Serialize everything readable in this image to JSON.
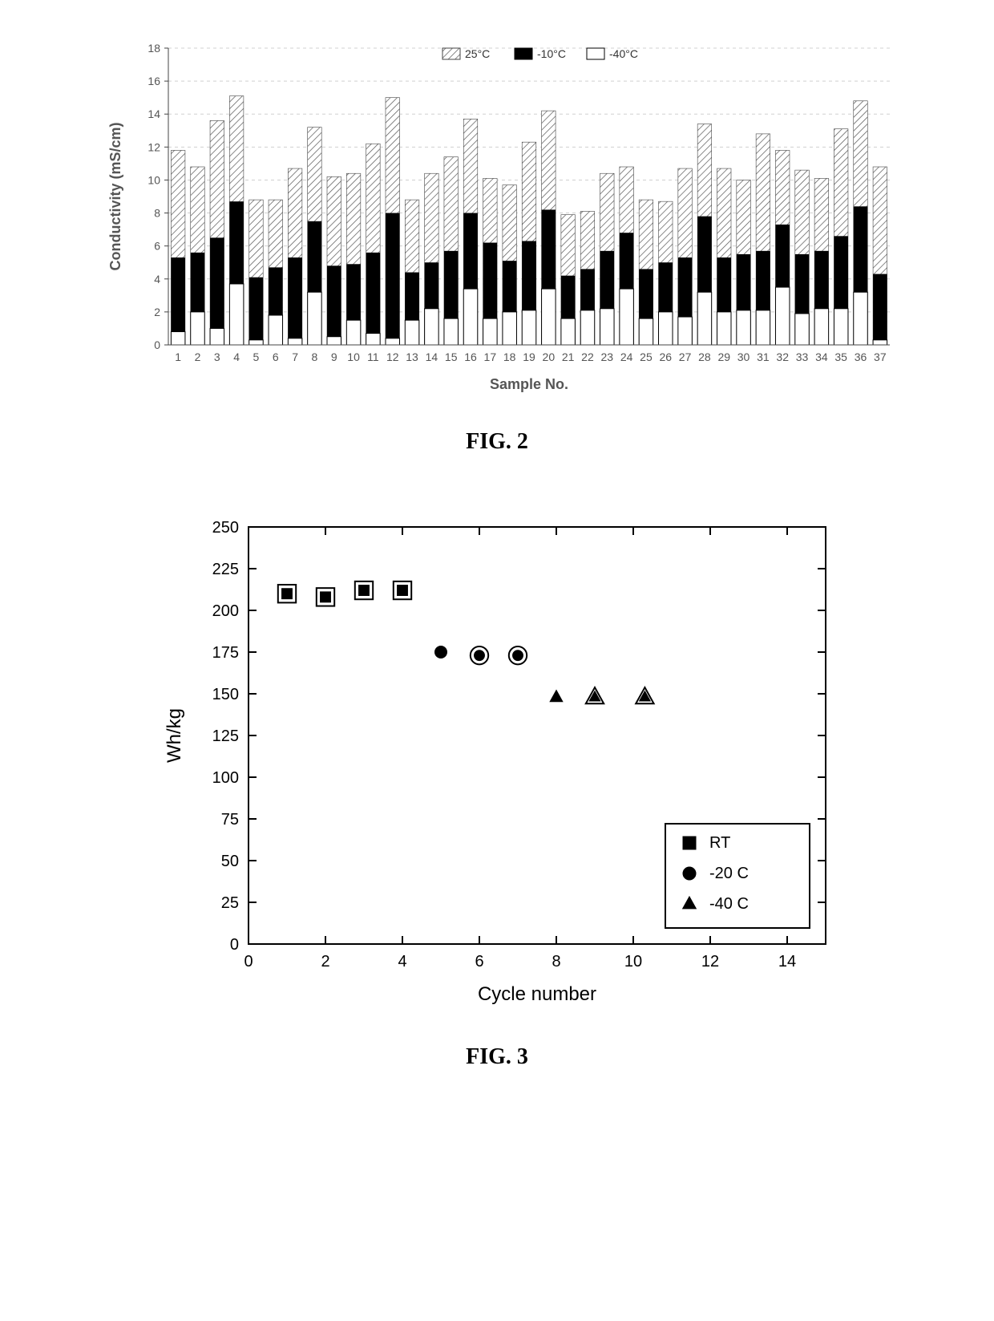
{
  "fig2": {
    "caption": "FIG. 2",
    "type": "bar",
    "xlabel": "Sample No.",
    "ylabel": "Conductivity (mS/cm)",
    "label_fontsize": 18,
    "tick_fontsize": 14,
    "categories": [
      "1",
      "2",
      "3",
      "4",
      "5",
      "6",
      "7",
      "8",
      "9",
      "10",
      "11",
      "12",
      "13",
      "14",
      "15",
      "16",
      "17",
      "18",
      "19",
      "20",
      "21",
      "22",
      "23",
      "24",
      "25",
      "26",
      "27",
      "28",
      "29",
      "30",
      "31",
      "32",
      "33",
      "34",
      "35",
      "36",
      "37"
    ],
    "ylim": [
      0,
      18
    ],
    "ytick_step": 2,
    "grid_color": "#d0d0d0",
    "grid_dash": "4,4",
    "background_color": "#ffffff",
    "bar_width": 0.72,
    "legend": {
      "items": [
        {
          "label": "25°C",
          "pattern": "hatch"
        },
        {
          "label": "-10°C",
          "pattern": "solid"
        },
        {
          "label": "-40°C",
          "pattern": "open"
        }
      ],
      "fontsize": 14
    },
    "series": {
      "25C": {
        "values": [
          11.8,
          10.8,
          13.6,
          15.1,
          8.8,
          8.8,
          10.7,
          13.2,
          10.2,
          10.4,
          12.2,
          15.0,
          8.8,
          10.4,
          11.4,
          13.7,
          10.1,
          9.7,
          12.3,
          14.2,
          7.9,
          8.1,
          10.4,
          10.8,
          8.8,
          8.7,
          10.7,
          13.4,
          10.7,
          10.0,
          12.8,
          11.8,
          10.6,
          10.1,
          13.1,
          14.8,
          10.8
        ],
        "pattern": "hatch",
        "color": "#666666"
      },
      "-10C": {
        "values": [
          5.3,
          5.6,
          6.5,
          8.7,
          4.1,
          4.7,
          5.3,
          7.5,
          4.8,
          4.9,
          5.6,
          8.0,
          4.4,
          5.0,
          5.7,
          8.0,
          6.2,
          5.1,
          6.3,
          8.2,
          4.2,
          4.6,
          5.7,
          6.8,
          4.6,
          5.0,
          5.3,
          7.8,
          5.3,
          5.5,
          5.7,
          7.3,
          5.5,
          5.7,
          6.6,
          8.4,
          4.3
        ],
        "pattern": "solid",
        "color": "#000000"
      },
      "-40C": {
        "values": [
          0.8,
          2.0,
          1.0,
          3.7,
          0.3,
          1.8,
          0.4,
          3.2,
          0.5,
          1.5,
          0.7,
          0.4,
          1.5,
          2.2,
          1.6,
          3.4,
          1.6,
          2.0,
          2.1,
          3.4,
          1.6,
          2.1,
          2.2,
          3.4,
          1.6,
          2.0,
          1.7,
          3.2,
          2.0,
          2.1,
          2.1,
          3.5,
          1.9,
          2.2,
          2.2,
          3.2,
          0.3
        ],
        "pattern": "open",
        "color": "#000000"
      }
    }
  },
  "fig3": {
    "caption": "FIG. 3",
    "type": "scatter",
    "xlabel": "Cycle number",
    "ylabel": "Wh/kg",
    "label_fontsize": 24,
    "tick_fontsize": 20,
    "xlim": [
      0,
      15
    ],
    "ylim": [
      0,
      250
    ],
    "xtick_step": 2,
    "ytick_step": 25,
    "background_color": "#ffffff",
    "border_color": "#000000",
    "border_width": 2,
    "marker_size": 14,
    "legend": {
      "position": "bottom-right",
      "fontsize": 20,
      "items": [
        {
          "label": "RT",
          "marker": "square"
        },
        {
          "label": "-20 C",
          "marker": "circle"
        },
        {
          "label": "-40 C",
          "marker": "triangle"
        }
      ]
    },
    "series": {
      "RT": {
        "marker": "square",
        "points": [
          {
            "x": 1,
            "y": 210,
            "variant": "open-over-solid"
          },
          {
            "x": 2,
            "y": 208,
            "variant": "open-over-solid"
          },
          {
            "x": 3,
            "y": 212,
            "variant": "open-over-solid"
          },
          {
            "x": 4,
            "y": 212,
            "variant": "open-over-solid"
          }
        ]
      },
      "-20C": {
        "marker": "circle",
        "points": [
          {
            "x": 5,
            "y": 175,
            "variant": "solid"
          },
          {
            "x": 6,
            "y": 173,
            "variant": "open-over-solid"
          },
          {
            "x": 7,
            "y": 173,
            "variant": "open-over-solid"
          }
        ]
      },
      "-40C": {
        "marker": "triangle",
        "points": [
          {
            "x": 8,
            "y": 148,
            "variant": "solid"
          },
          {
            "x": 9,
            "y": 148,
            "variant": "open-over-solid"
          },
          {
            "x": 10.3,
            "y": 148,
            "variant": "open-over-solid"
          }
        ]
      }
    }
  }
}
